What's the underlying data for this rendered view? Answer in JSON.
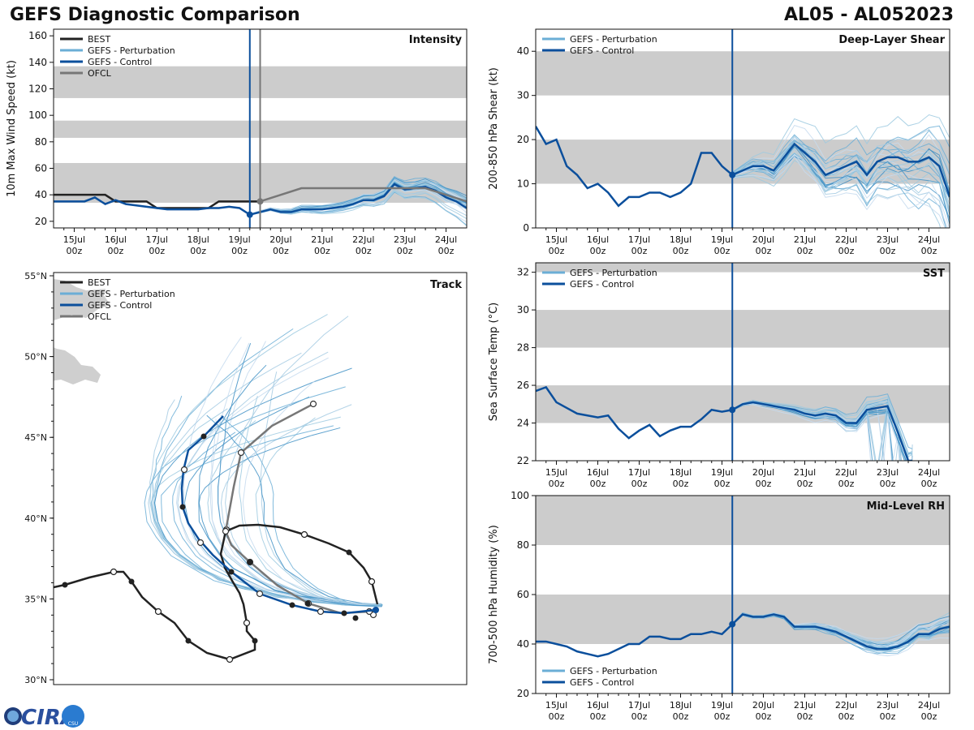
{
  "header": {
    "title": "GEFS Diagnostic Comparison",
    "storm_id": "AL05 - AL052023"
  },
  "logo": {
    "text": "CIRA",
    "badge_text": "CSU"
  },
  "colors": {
    "best": "#222222",
    "perturbation": "#6baed6",
    "control": "#0b4f9c",
    "ofcl": "#777777",
    "band": "#cccccc",
    "land": "#cfcfcf"
  },
  "time_axis": {
    "ticks": [
      "15Jul",
      "16Jul",
      "17Jul",
      "18Jul",
      "19Jul",
      "20Jul",
      "21Jul",
      "22Jul",
      "23Jul",
      "24Jul"
    ],
    "hour_label": "00z"
  },
  "chart_data": [
    {
      "id": "intensity",
      "type": "line",
      "title": "Intensity",
      "ylabel": "10m Max Wind Speed (kt)",
      "ylim": [
        15,
        165
      ],
      "yticks": [
        20,
        40,
        60,
        80,
        100,
        120,
        140,
        160
      ],
      "xlim_days": [
        14.5,
        24.5
      ],
      "init_day": 19.25,
      "ofcl_init_day": 19.5,
      "bands": [
        [
          34,
          64
        ],
        [
          83,
          96
        ],
        [
          113,
          137
        ]
      ],
      "legend": [
        "BEST",
        "GEFS - Perturbation",
        "GEFS - Control",
        "OFCL"
      ],
      "series": [
        {
          "name": "BEST",
          "x": [
            14.5,
            15,
            15.5,
            15.75,
            16,
            16.25,
            16.5,
            16.75,
            17,
            17.25,
            17.5,
            17.75,
            18,
            18.25,
            18.5,
            18.75,
            19,
            19.25,
            19.5
          ],
          "values": [
            40,
            40,
            40,
            40,
            35,
            35,
            35,
            35,
            30,
            30,
            30,
            30,
            30,
            30,
            35,
            35,
            35,
            35,
            35
          ]
        },
        {
          "name": "GEFS - Control",
          "x": [
            14.5,
            15,
            15.25,
            15.5,
            15.75,
            16,
            16.25,
            16.5,
            16.75,
            17,
            17.25,
            17.5,
            17.75,
            18,
            18.25,
            18.5,
            18.75,
            19,
            19.25,
            19.5,
            19.75,
            20,
            20.25,
            20.5,
            20.75,
            21,
            21.25,
            21.5,
            21.75,
            22,
            22.25,
            22.5,
            22.75,
            23,
            23.25,
            23.5,
            23.75,
            24,
            24.25,
            24.5
          ],
          "values": [
            35,
            35,
            35,
            38,
            33,
            36,
            33,
            32,
            31,
            30,
            29,
            29,
            29,
            29,
            30,
            30,
            31,
            30,
            25,
            27,
            29,
            27,
            27,
            29,
            29,
            29,
            30,
            31,
            33,
            36,
            36,
            39,
            48,
            44,
            45,
            46,
            43,
            38,
            35,
            30
          ]
        },
        {
          "name": "OFCL",
          "x": [
            19.5,
            20,
            20.5,
            21,
            21.5,
            22,
            22.5,
            23,
            23.5,
            24,
            24.5
          ],
          "values": [
            35,
            40,
            45,
            45,
            45,
            45,
            45,
            45,
            45,
            40,
            35
          ]
        }
      ]
    },
    {
      "id": "shear",
      "type": "line",
      "title": "Deep-Layer Shear",
      "ylabel": "200-850 hPa Shear (kt)",
      "ylim": [
        0,
        45
      ],
      "yticks": [
        0,
        10,
        20,
        30,
        40
      ],
      "xlim_days": [
        14.5,
        24.5
      ],
      "init_day": 19.25,
      "bands": [
        [
          10,
          20
        ],
        [
          30,
          40
        ]
      ],
      "legend": [
        "GEFS - Perturbation",
        "GEFS - Control"
      ],
      "series": [
        {
          "name": "GEFS - Control",
          "x": [
            14.5,
            14.75,
            15,
            15.25,
            15.5,
            15.75,
            16,
            16.25,
            16.5,
            16.75,
            17,
            17.25,
            17.5,
            17.75,
            18,
            18.25,
            18.5,
            18.75,
            19,
            19.25,
            19.5,
            19.75,
            20,
            20.25,
            20.5,
            20.75,
            21,
            21.25,
            21.5,
            21.75,
            22,
            22.25,
            22.5,
            22.75,
            23,
            23.25,
            23.5,
            23.75,
            24,
            24.25,
            24.5
          ],
          "values": [
            23,
            19,
            20,
            14,
            12,
            9,
            10,
            8,
            5,
            7,
            7,
            8,
            8,
            7,
            8,
            10,
            17,
            17,
            14,
            12,
            13,
            14,
            14,
            13,
            16,
            19,
            17,
            15,
            12,
            13,
            14,
            15,
            12,
            15,
            16,
            16,
            15,
            15,
            16,
            14,
            7
          ]
        }
      ]
    },
    {
      "id": "sst",
      "type": "line",
      "title": "SST",
      "ylabel": "Sea Surface Temp (°C)",
      "ylim": [
        22,
        32.5
      ],
      "yticks": [
        22,
        24,
        26,
        28,
        30,
        32
      ],
      "xlim_days": [
        14.5,
        24.5
      ],
      "init_day": 19.25,
      "bands": [
        [
          24,
          26
        ],
        [
          28,
          30
        ],
        [
          32,
          32.5
        ]
      ],
      "legend": [
        "GEFS - Perturbation",
        "GEFS - Control"
      ],
      "series": [
        {
          "name": "GEFS - Control",
          "x": [
            14.5,
            14.75,
            15,
            15.25,
            15.5,
            15.75,
            16,
            16.25,
            16.5,
            16.75,
            17,
            17.25,
            17.5,
            17.75,
            18,
            18.25,
            18.5,
            18.75,
            19,
            19.25,
            19.5,
            19.75,
            20,
            20.25,
            20.5,
            20.75,
            21,
            21.25,
            21.5,
            21.75,
            22,
            22.25,
            22.5,
            22.75,
            23,
            23.25,
            23.5,
            23.6
          ],
          "values": [
            25.7,
            25.9,
            25.1,
            24.8,
            24.5,
            24.4,
            24.3,
            24.4,
            23.7,
            23.2,
            23.6,
            23.9,
            23.3,
            23.6,
            23.8,
            23.8,
            24.2,
            24.7,
            24.6,
            24.7,
            25.0,
            25.1,
            25.0,
            24.9,
            24.8,
            24.7,
            24.5,
            24.4,
            24.5,
            24.4,
            24.0,
            24.0,
            24.7,
            24.8,
            24.9,
            23.5,
            22.0,
            22.0
          ]
        }
      ]
    },
    {
      "id": "rh",
      "type": "line",
      "title": "Mid-Level RH",
      "ylabel": "700-500 hPa Humidity (%)",
      "ylim": [
        20,
        100
      ],
      "yticks": [
        20,
        40,
        60,
        80,
        100
      ],
      "xlim_days": [
        14.5,
        24.5
      ],
      "init_day": 19.25,
      "bands": [
        [
          40,
          60
        ],
        [
          80,
          100
        ]
      ],
      "legend": [
        "GEFS - Perturbation",
        "GEFS - Control"
      ],
      "series": [
        {
          "name": "GEFS - Control",
          "x": [
            14.5,
            14.75,
            15,
            15.25,
            15.5,
            15.75,
            16,
            16.25,
            16.5,
            16.75,
            17,
            17.25,
            17.5,
            17.75,
            18,
            18.25,
            18.5,
            18.75,
            19,
            19.25,
            19.5,
            19.75,
            20,
            20.25,
            20.5,
            20.75,
            21,
            21.25,
            21.5,
            21.75,
            22,
            22.25,
            22.5,
            22.75,
            23,
            23.25,
            23.5,
            23.75,
            24,
            24.25,
            24.5
          ],
          "values": [
            41,
            41,
            40,
            39,
            37,
            36,
            35,
            36,
            38,
            40,
            40,
            43,
            43,
            42,
            42,
            44,
            44,
            45,
            44,
            48,
            52,
            51,
            51,
            52,
            51,
            47,
            47,
            47,
            46,
            45,
            43,
            41,
            39,
            38,
            38,
            39,
            41,
            44,
            44,
            46,
            47
          ]
        }
      ]
    },
    {
      "id": "track",
      "type": "line",
      "title": "Track",
      "lat_ticks": [
        30,
        35,
        40,
        45,
        50,
        55
      ],
      "lat_range": [
        29.7,
        55.2
      ],
      "lat_labels": [
        "30°N",
        "35°N",
        "40°N",
        "45°N",
        "50°N",
        "55°N"
      ],
      "legend": [
        "BEST",
        "GEFS - Perturbation",
        "GEFS - Control",
        "OFCL"
      ]
    }
  ]
}
